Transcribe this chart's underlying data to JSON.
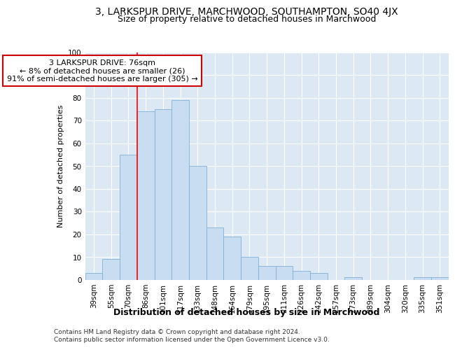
{
  "title1": "3, LARKSPUR DRIVE, MARCHWOOD, SOUTHAMPTON, SO40 4JX",
  "title2": "Size of property relative to detached houses in Marchwood",
  "xlabel": "Distribution of detached houses by size in Marchwood",
  "ylabel": "Number of detached properties",
  "footer1": "Contains HM Land Registry data © Crown copyright and database right 2024.",
  "footer2": "Contains public sector information licensed under the Open Government Licence v3.0.",
  "categories": [
    "39sqm",
    "55sqm",
    "70sqm",
    "86sqm",
    "101sqm",
    "117sqm",
    "133sqm",
    "148sqm",
    "164sqm",
    "179sqm",
    "195sqm",
    "211sqm",
    "226sqm",
    "242sqm",
    "257sqm",
    "273sqm",
    "289sqm",
    "304sqm",
    "320sqm",
    "335sqm",
    "351sqm"
  ],
  "values": [
    3,
    9,
    55,
    74,
    75,
    79,
    50,
    23,
    19,
    10,
    6,
    6,
    4,
    3,
    0,
    1,
    0,
    0,
    0,
    1,
    1
  ],
  "bar_color": "#c8ddf0",
  "bar_edge_color": "#7fb0d8",
  "red_line_x": 2.5,
  "annotation_title": "3 LARKSPUR DRIVE: 76sqm",
  "annotation_line1": "← 8% of detached houses are smaller (26)",
  "annotation_line2": "91% of semi-detached houses are larger (305) →",
  "ylim": [
    0,
    100
  ],
  "yticks": [
    0,
    10,
    20,
    30,
    40,
    50,
    60,
    70,
    80,
    90,
    100
  ],
  "plot_bg_color": "#dce9f5",
  "title1_fontsize": 10,
  "title2_fontsize": 9,
  "annotation_box_facecolor": "#ffffff",
  "annotation_box_edgecolor": "#cc0000",
  "annotation_fontsize": 8,
  "ylabel_fontsize": 8,
  "xlabel_fontsize": 9,
  "footer_fontsize": 6.5,
  "tick_fontsize": 7.5
}
